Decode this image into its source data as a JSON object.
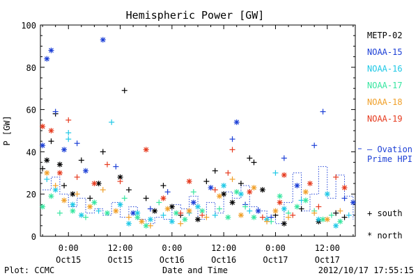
{
  "chart_data": {
    "type": "scatter",
    "title": "Hemispheric Power [GW]",
    "ylabel": "P [GW]",
    "xlabel": "Date and Time",
    "ylim": [
      0,
      100
    ],
    "y_ticks": [
      0,
      20,
      40,
      60,
      80,
      100
    ],
    "x_ticks": [
      {
        "t": 0,
        "top": "0:00",
        "bottom": "Oct15"
      },
      {
        "t": 12,
        "top": "12:00",
        "bottom": "Oct15"
      },
      {
        "t": 24,
        "top": "0:00",
        "bottom": "Oct16"
      },
      {
        "t": 36,
        "top": "12:00",
        "bottom": "Oct16"
      },
      {
        "t": 48,
        "top": "0:00",
        "bottom": "Oct17"
      },
      {
        "t": 60,
        "top": "12:00",
        "bottom": "Oct17"
      }
    ],
    "xlim": [
      -6.5,
      66.5
    ],
    "legend": [
      {
        "name": "METP-02",
        "color": "#000000"
      },
      {
        "name": "NOAA-15",
        "color": "#1c3fd6"
      },
      {
        "name": "NOAA-16",
        "color": "#1ec8e6"
      },
      {
        "name": "NOAA-17",
        "color": "#37e6a0"
      },
      {
        "name": "NOAA-18",
        "color": "#f0a02a"
      },
      {
        "name": "NOAA-19",
        "color": "#e63a1e"
      }
    ],
    "ovation_label": [
      "— Ovation",
      "Prime HPI"
    ],
    "ovation_color": "#1c3fd6",
    "marker_legend": {
      "south": "+ south",
      "north": "* north"
    },
    "ovation_hpi": [
      [
        -6,
        22
      ],
      [
        -4,
        28
      ],
      [
        -2,
        20
      ],
      [
        0,
        14
      ],
      [
        2,
        18
      ],
      [
        4,
        11
      ],
      [
        6,
        13
      ],
      [
        8,
        10
      ],
      [
        10,
        16
      ],
      [
        12,
        9
      ],
      [
        14,
        14
      ],
      [
        16,
        8
      ],
      [
        18,
        6
      ],
      [
        20,
        9
      ],
      [
        22,
        8
      ],
      [
        24,
        15
      ],
      [
        26,
        13
      ],
      [
        28,
        19
      ],
      [
        30,
        8
      ],
      [
        32,
        16
      ],
      [
        34,
        11
      ],
      [
        36,
        21
      ],
      [
        38,
        18
      ],
      [
        40,
        24
      ],
      [
        42,
        14
      ],
      [
        44,
        12
      ],
      [
        46,
        9
      ],
      [
        48,
        6
      ],
      [
        50,
        16
      ],
      [
        52,
        30
      ],
      [
        54,
        12
      ],
      [
        56,
        20
      ],
      [
        58,
        33
      ],
      [
        60,
        18
      ],
      [
        62,
        29
      ],
      [
        64,
        19
      ],
      [
        66,
        8
      ]
    ],
    "series": [
      {
        "name": "METP-02",
        "points": [
          [
            -6,
            32,
            "s"
          ],
          [
            -5,
            36,
            "n"
          ],
          [
            -4,
            45,
            "s"
          ],
          [
            -3,
            58,
            "s"
          ],
          [
            -2,
            34,
            "n"
          ],
          [
            -1,
            24,
            "s"
          ],
          [
            1,
            20,
            "n"
          ],
          [
            3,
            36,
            "s"
          ],
          [
            5,
            18,
            "s"
          ],
          [
            7,
            25,
            "n"
          ],
          [
            8,
            40,
            "s"
          ],
          [
            12,
            28,
            "n"
          ],
          [
            13,
            69,
            "s"
          ],
          [
            14,
            22,
            "s"
          ],
          [
            18,
            18,
            "s"
          ],
          [
            20,
            12,
            "n"
          ],
          [
            22,
            24,
            "s"
          ],
          [
            24,
            14,
            "n"
          ],
          [
            26,
            10,
            "s"
          ],
          [
            30,
            8,
            "n"
          ],
          [
            32,
            26,
            "s"
          ],
          [
            34,
            31,
            "s"
          ],
          [
            36,
            20,
            "n"
          ],
          [
            38,
            16,
            "n"
          ],
          [
            40,
            25,
            "s"
          ],
          [
            42,
            37,
            "s"
          ],
          [
            43,
            35,
            "s"
          ],
          [
            45,
            22,
            "n"
          ],
          [
            48,
            10,
            "s"
          ],
          [
            50,
            6,
            "n"
          ],
          [
            54,
            13,
            "s"
          ],
          [
            58,
            7,
            "n"
          ],
          [
            62,
            11,
            "s"
          ],
          [
            64,
            9,
            "s"
          ]
        ]
      },
      {
        "name": "NOAA-15",
        "points": [
          [
            -6,
            43,
            "n"
          ],
          [
            -5,
            84,
            "n"
          ],
          [
            -4,
            88,
            "n"
          ],
          [
            -3,
            59,
            "s"
          ],
          [
            -1,
            41,
            "n"
          ],
          [
            2,
            44,
            "s"
          ],
          [
            4,
            31,
            "n"
          ],
          [
            8,
            93,
            "n"
          ],
          [
            11,
            33,
            "s"
          ],
          [
            15,
            11,
            "n"
          ],
          [
            19,
            13,
            "s"
          ],
          [
            23,
            21,
            "s"
          ],
          [
            29,
            16,
            "n"
          ],
          [
            33,
            23,
            "n"
          ],
          [
            38,
            46,
            "s"
          ],
          [
            39,
            54,
            "n"
          ],
          [
            41,
            15,
            "s"
          ],
          [
            44,
            12,
            "n"
          ],
          [
            47,
            9,
            "s"
          ],
          [
            50,
            37,
            "s"
          ],
          [
            53,
            24,
            "n"
          ],
          [
            57,
            43,
            "s"
          ],
          [
            59,
            59,
            "s"
          ],
          [
            64,
            18,
            "s"
          ],
          [
            66,
            16,
            "n"
          ]
        ]
      },
      {
        "name": "NOAA-16",
        "points": [
          [
            -5,
            27,
            "s"
          ],
          [
            -3,
            22,
            "n"
          ],
          [
            0,
            49,
            "s"
          ],
          [
            0,
            46,
            "s"
          ],
          [
            1,
            15,
            "n"
          ],
          [
            3,
            10,
            "n"
          ],
          [
            7,
            12,
            "s"
          ],
          [
            10,
            54,
            "s"
          ],
          [
            12,
            15,
            "n"
          ],
          [
            14,
            6,
            "n"
          ],
          [
            16,
            11,
            "n"
          ],
          [
            19,
            8,
            "n"
          ],
          [
            22,
            10,
            "s"
          ],
          [
            24,
            7,
            "n"
          ],
          [
            28,
            11,
            "s"
          ],
          [
            30,
            14,
            "n"
          ],
          [
            34,
            10,
            "s"
          ],
          [
            36,
            24,
            "n"
          ],
          [
            40,
            20,
            "n"
          ],
          [
            42,
            12,
            "s"
          ],
          [
            46,
            8,
            "n"
          ],
          [
            48,
            30,
            "s"
          ],
          [
            50,
            13,
            "n"
          ],
          [
            54,
            17,
            "s"
          ],
          [
            58,
            8,
            "n"
          ],
          [
            60,
            20,
            "n"
          ],
          [
            62,
            5,
            "n"
          ],
          [
            65,
            10,
            "s"
          ]
        ]
      },
      {
        "name": "NOAA-17",
        "points": [
          [
            -6,
            14,
            "n"
          ],
          [
            -4,
            19,
            "n"
          ],
          [
            -2,
            11,
            "s"
          ],
          [
            1,
            12,
            "n"
          ],
          [
            4,
            9,
            "s"
          ],
          [
            6,
            16,
            "n"
          ],
          [
            9,
            11,
            "n"
          ],
          [
            13,
            18,
            "s"
          ],
          [
            16,
            9,
            "n"
          ],
          [
            18,
            5,
            "n"
          ],
          [
            21,
            16,
            "s"
          ],
          [
            25,
            11,
            "n"
          ],
          [
            27,
            8,
            "n"
          ],
          [
            29,
            21,
            "s"
          ],
          [
            31,
            12,
            "n"
          ],
          [
            35,
            13,
            "s"
          ],
          [
            37,
            9,
            "n"
          ],
          [
            39,
            21,
            "n"
          ],
          [
            41,
            14,
            "s"
          ],
          [
            43,
            9,
            "n"
          ],
          [
            47,
            7,
            "s"
          ],
          [
            49,
            19,
            "n"
          ],
          [
            51,
            11,
            "s"
          ],
          [
            53,
            14,
            "n"
          ],
          [
            55,
            17,
            "n"
          ],
          [
            57,
            12,
            "s"
          ],
          [
            59,
            8,
            "n"
          ],
          [
            61,
            10,
            "s"
          ],
          [
            63,
            7,
            "n"
          ]
        ]
      },
      {
        "name": "NOAA-18",
        "points": [
          [
            -5,
            30,
            "n"
          ],
          [
            -3,
            24,
            "s"
          ],
          [
            -1,
            17,
            "n"
          ],
          [
            2,
            20,
            "s"
          ],
          [
            5,
            14,
            "n"
          ],
          [
            8,
            22,
            "s"
          ],
          [
            11,
            12,
            "n"
          ],
          [
            14,
            9,
            "s"
          ],
          [
            17,
            7,
            "n"
          ],
          [
            19,
            5,
            "s"
          ],
          [
            23,
            13,
            "n"
          ],
          [
            26,
            6,
            "s"
          ],
          [
            28,
            12,
            "n"
          ],
          [
            32,
            9,
            "s"
          ],
          [
            35,
            19,
            "n"
          ],
          [
            38,
            27,
            "s"
          ],
          [
            40,
            10,
            "n"
          ],
          [
            43,
            23,
            "n"
          ],
          [
            46,
            7,
            "s"
          ],
          [
            48,
            12,
            "n"
          ],
          [
            51,
            9,
            "s"
          ],
          [
            55,
            21,
            "n"
          ],
          [
            57,
            11,
            "s"
          ],
          [
            60,
            8,
            "n"
          ],
          [
            63,
            12,
            "s"
          ]
        ]
      },
      {
        "name": "NOAA-19",
        "points": [
          [
            -6,
            52,
            "n"
          ],
          [
            -4,
            50,
            "n"
          ],
          [
            -2,
            30,
            "n"
          ],
          [
            0,
            55,
            "s"
          ],
          [
            2,
            28,
            "s"
          ],
          [
            6,
            25,
            "n"
          ],
          [
            9,
            34,
            "s"
          ],
          [
            12,
            26,
            "s"
          ],
          [
            18,
            41,
            "n"
          ],
          [
            22,
            18,
            "n"
          ],
          [
            26,
            11,
            "s"
          ],
          [
            28,
            26,
            "n"
          ],
          [
            31,
            10,
            "s"
          ],
          [
            34,
            22,
            "s"
          ],
          [
            37,
            30,
            "s"
          ],
          [
            38,
            41,
            "s"
          ],
          [
            42,
            21,
            "n"
          ],
          [
            45,
            9,
            "s"
          ],
          [
            49,
            16,
            "n"
          ],
          [
            50,
            29,
            "n"
          ],
          [
            52,
            10,
            "s"
          ],
          [
            56,
            25,
            "n"
          ],
          [
            58,
            14,
            "s"
          ],
          [
            62,
            28,
            "s"
          ],
          [
            64,
            23,
            "n"
          ]
        ]
      }
    ]
  },
  "footer": {
    "left": "Plot: CCMC",
    "right": "2012/10/17 17:55:15"
  }
}
